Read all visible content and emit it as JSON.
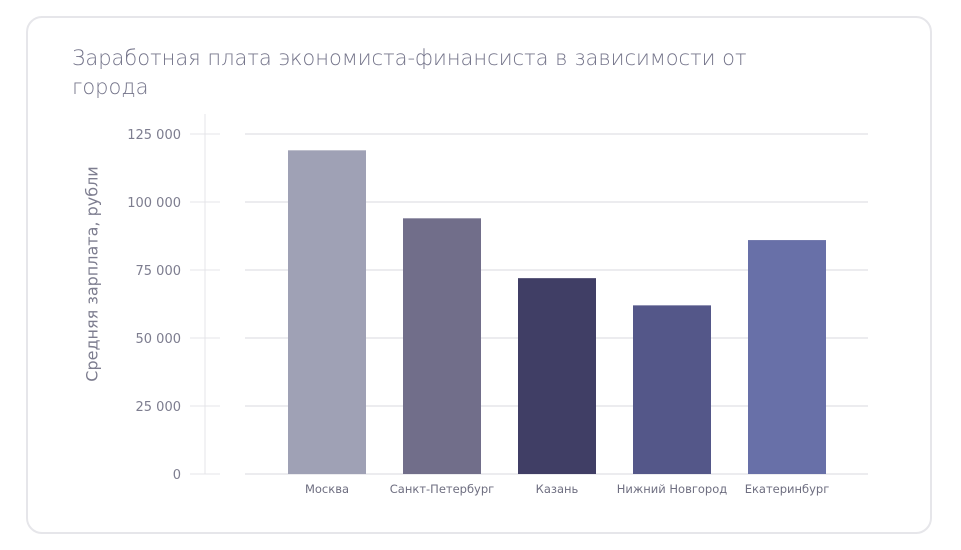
{
  "chart_data": {
    "type": "bar",
    "title": "Заработная плата экономиста-финансиста в зависимости от города",
    "xlabel": "",
    "ylabel": "Средняя зарплата, рубли",
    "ylim": [
      0,
      125000
    ],
    "yticks": [
      0,
      25000,
      50000,
      75000,
      100000,
      125000
    ],
    "ytick_labels": [
      "0",
      "25 000",
      "50 000",
      "75 000",
      "100 000",
      "125 000"
    ],
    "grid": true,
    "categories": [
      "Москва",
      "Санкт-Петербург",
      "Казань",
      "Нижний Новгород",
      "Екатеринбург"
    ],
    "values": [
      119000,
      94000,
      72000,
      62000,
      86000
    ],
    "colors": [
      "#9fa1b5",
      "#716e8a",
      "#403e65",
      "#545789",
      "#6870a8"
    ]
  }
}
